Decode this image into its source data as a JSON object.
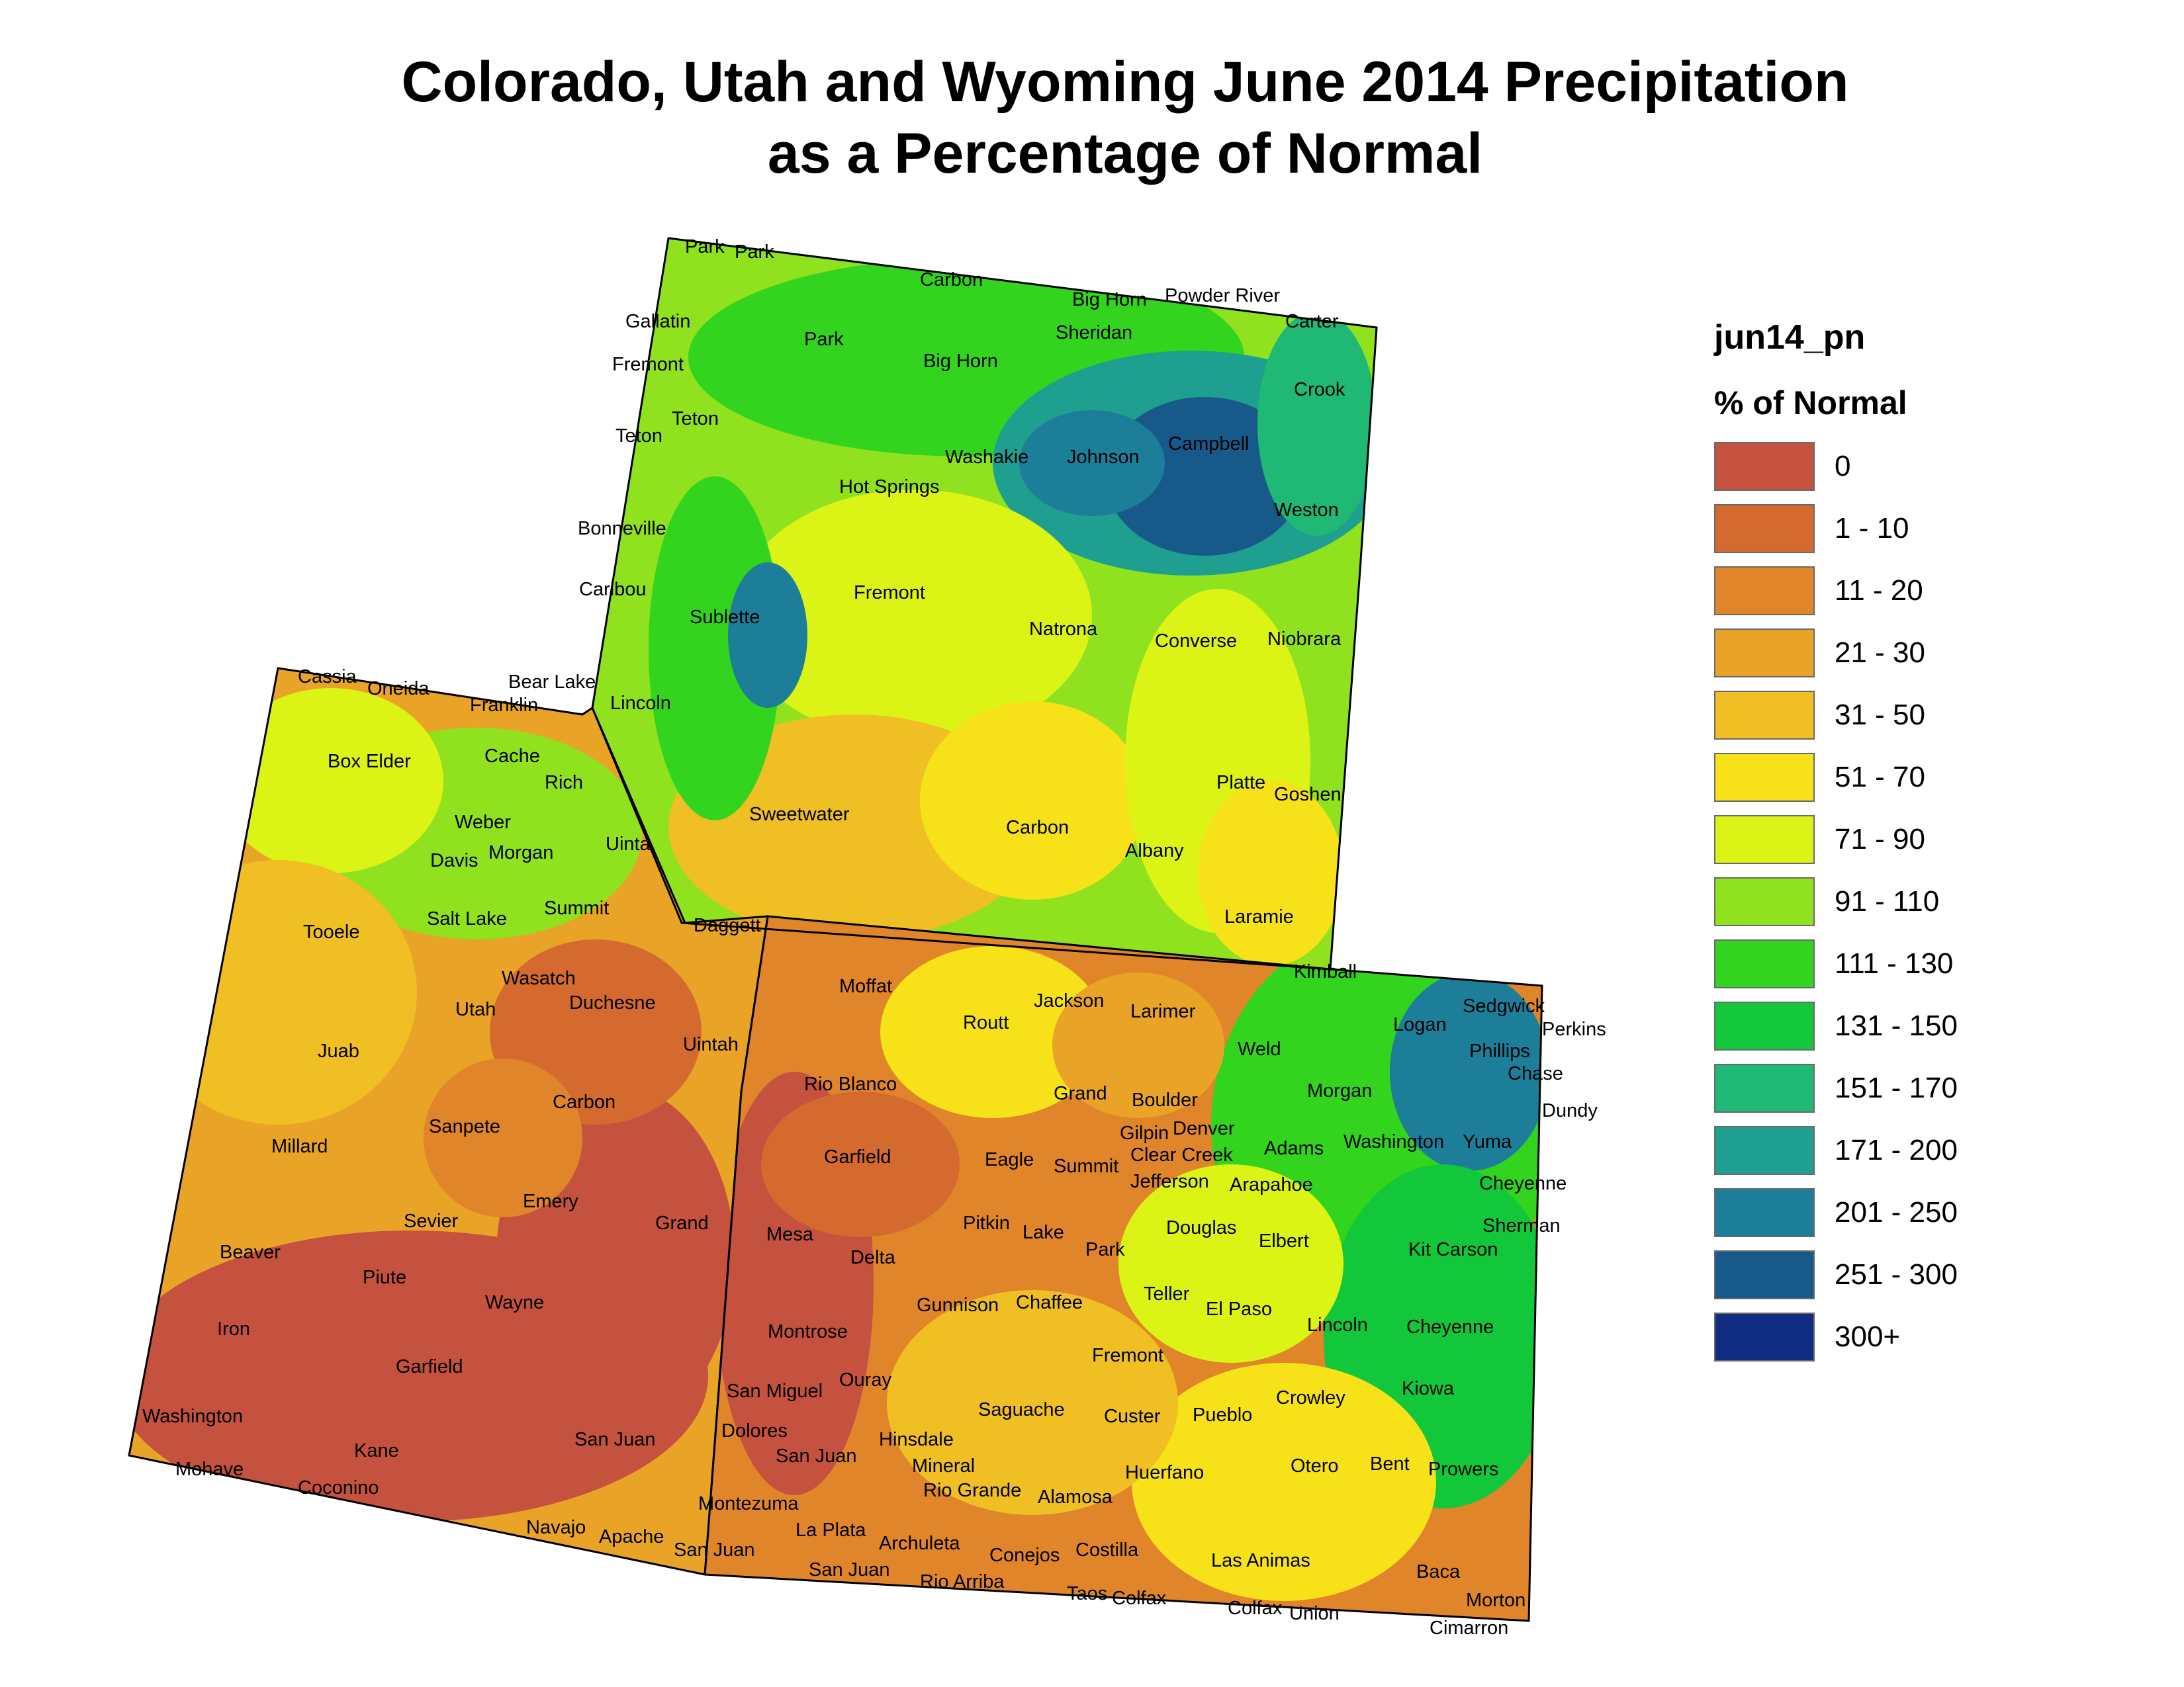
{
  "title": {
    "line1": "Colorado, Utah and Wyoming June 2014 Precipitation",
    "line2": "as a Percentage of Normal"
  },
  "legend": {
    "title": "jun14_pn",
    "subtitle": "% of Normal",
    "items": [
      {
        "label": "0",
        "color": "#c4523e"
      },
      {
        "label": "1 - 10",
        "color": "#d46a2e"
      },
      {
        "label": "11 - 20",
        "color": "#e0852a"
      },
      {
        "label": "21 - 30",
        "color": "#e9a428"
      },
      {
        "label": "31 - 50",
        "color": "#efbf23"
      },
      {
        "label": "51 - 70",
        "color": "#f7e21a"
      },
      {
        "label": "71 - 90",
        "color": "#dcf415"
      },
      {
        "label": "91 - 110",
        "color": "#8fe21d"
      },
      {
        "label": "111 - 130",
        "color": "#33d41d"
      },
      {
        "label": "131 - 150",
        "color": "#12c83a"
      },
      {
        "label": "151 - 170",
        "color": "#1fb875"
      },
      {
        "label": "171 - 200",
        "color": "#1e9f90"
      },
      {
        "label": "201 - 250",
        "color": "#1d7e99"
      },
      {
        "label": "251 - 300",
        "color": "#175a8a"
      },
      {
        "label": "300+",
        "color": "#102d82"
      }
    ]
  },
  "map": {
    "states": [
      "Wyoming",
      "Utah",
      "Colorado"
    ],
    "colors": {
      "outline": "#000000",
      "wyoming_base": "#8fe21d",
      "utah_base": "#e9a428",
      "colorado_base": "#e0852a"
    },
    "counties": [
      "Park",
      "Park",
      "Carbon",
      "Big Horn",
      "Powder River",
      "Gallatin",
      "Carter",
      "Sheridan",
      "Park",
      "Big Horn",
      "Crook",
      "Fremont",
      "Teton",
      "Teton",
      "Washakie",
      "Johnson",
      "Campbell",
      "Hot Springs",
      "Weston",
      "Bonneville",
      "Caribou",
      "Fremont",
      "Sublette",
      "Natrona",
      "Converse",
      "Niobrara",
      "Cassia",
      "Oneida",
      "Bear Lake",
      "Franklin",
      "Lincoln",
      "Box Elder",
      "Cache",
      "Rich",
      "Sweetwater",
      "Carbon",
      "Platte",
      "Goshen",
      "Weber",
      "Davis",
      "Morgan",
      "Uinta",
      "Albany",
      "Tooele",
      "Summit",
      "Salt Lake",
      "Daggett",
      "Laramie",
      "Wasatch",
      "Moffat",
      "Kimball",
      "Utah",
      "Duchesne",
      "Sedgwick",
      "Perkins",
      "Juab",
      "Uintah",
      "Jackson",
      "Larimer",
      "Routt",
      "Logan",
      "Phillips",
      "Weld",
      "Chase",
      "Rio Blanco",
      "Grand",
      "Morgan",
      "Boulder",
      "Dundy",
      "Carbon",
      "Sanpete",
      "Gilpin",
      "Denver",
      "Washington",
      "Yuma",
      "Millard",
      "Garfield",
      "Eagle",
      "Summit",
      "Clear Creek",
      "Adams",
      "Jefferson",
      "Arapahoe",
      "Cheyenne",
      "Emery",
      "Grand",
      "Sevier",
      "Pitkin",
      "Mesa",
      "Lake",
      "Douglas",
      "Elbert",
      "Sherman",
      "Beaver",
      "Park",
      "Kit Carson",
      "Piute",
      "Delta",
      "Chaffee",
      "Teller",
      "Wayne",
      "Gunnison",
      "El Paso",
      "Iron",
      "Lincoln",
      "Cheyenne",
      "Montrose",
      "Garfield",
      "Fremont",
      "Ouray",
      "San Miguel",
      "Crowley",
      "Kiowa",
      "Washington",
      "Saguache",
      "Custer",
      "Pueblo",
      "Kane",
      "San Juan",
      "Dolores",
      "Hinsdale",
      "San Juan",
      "Mineral",
      "Otero",
      "Bent",
      "Prowers",
      "Mohave",
      "Huerfano",
      "Coconino",
      "Rio Grande",
      "Alamosa",
      "Montezuma",
      "Navajo",
      "La Plata",
      "Archuleta",
      "Apache",
      "San Juan",
      "Costilla",
      "Conejos",
      "Las Animas",
      "San Juan",
      "Baca",
      "Rio Arriba",
      "Taos",
      "Colfax",
      "Colfax",
      "Union",
      "Morton",
      "Cimarron"
    ]
  }
}
